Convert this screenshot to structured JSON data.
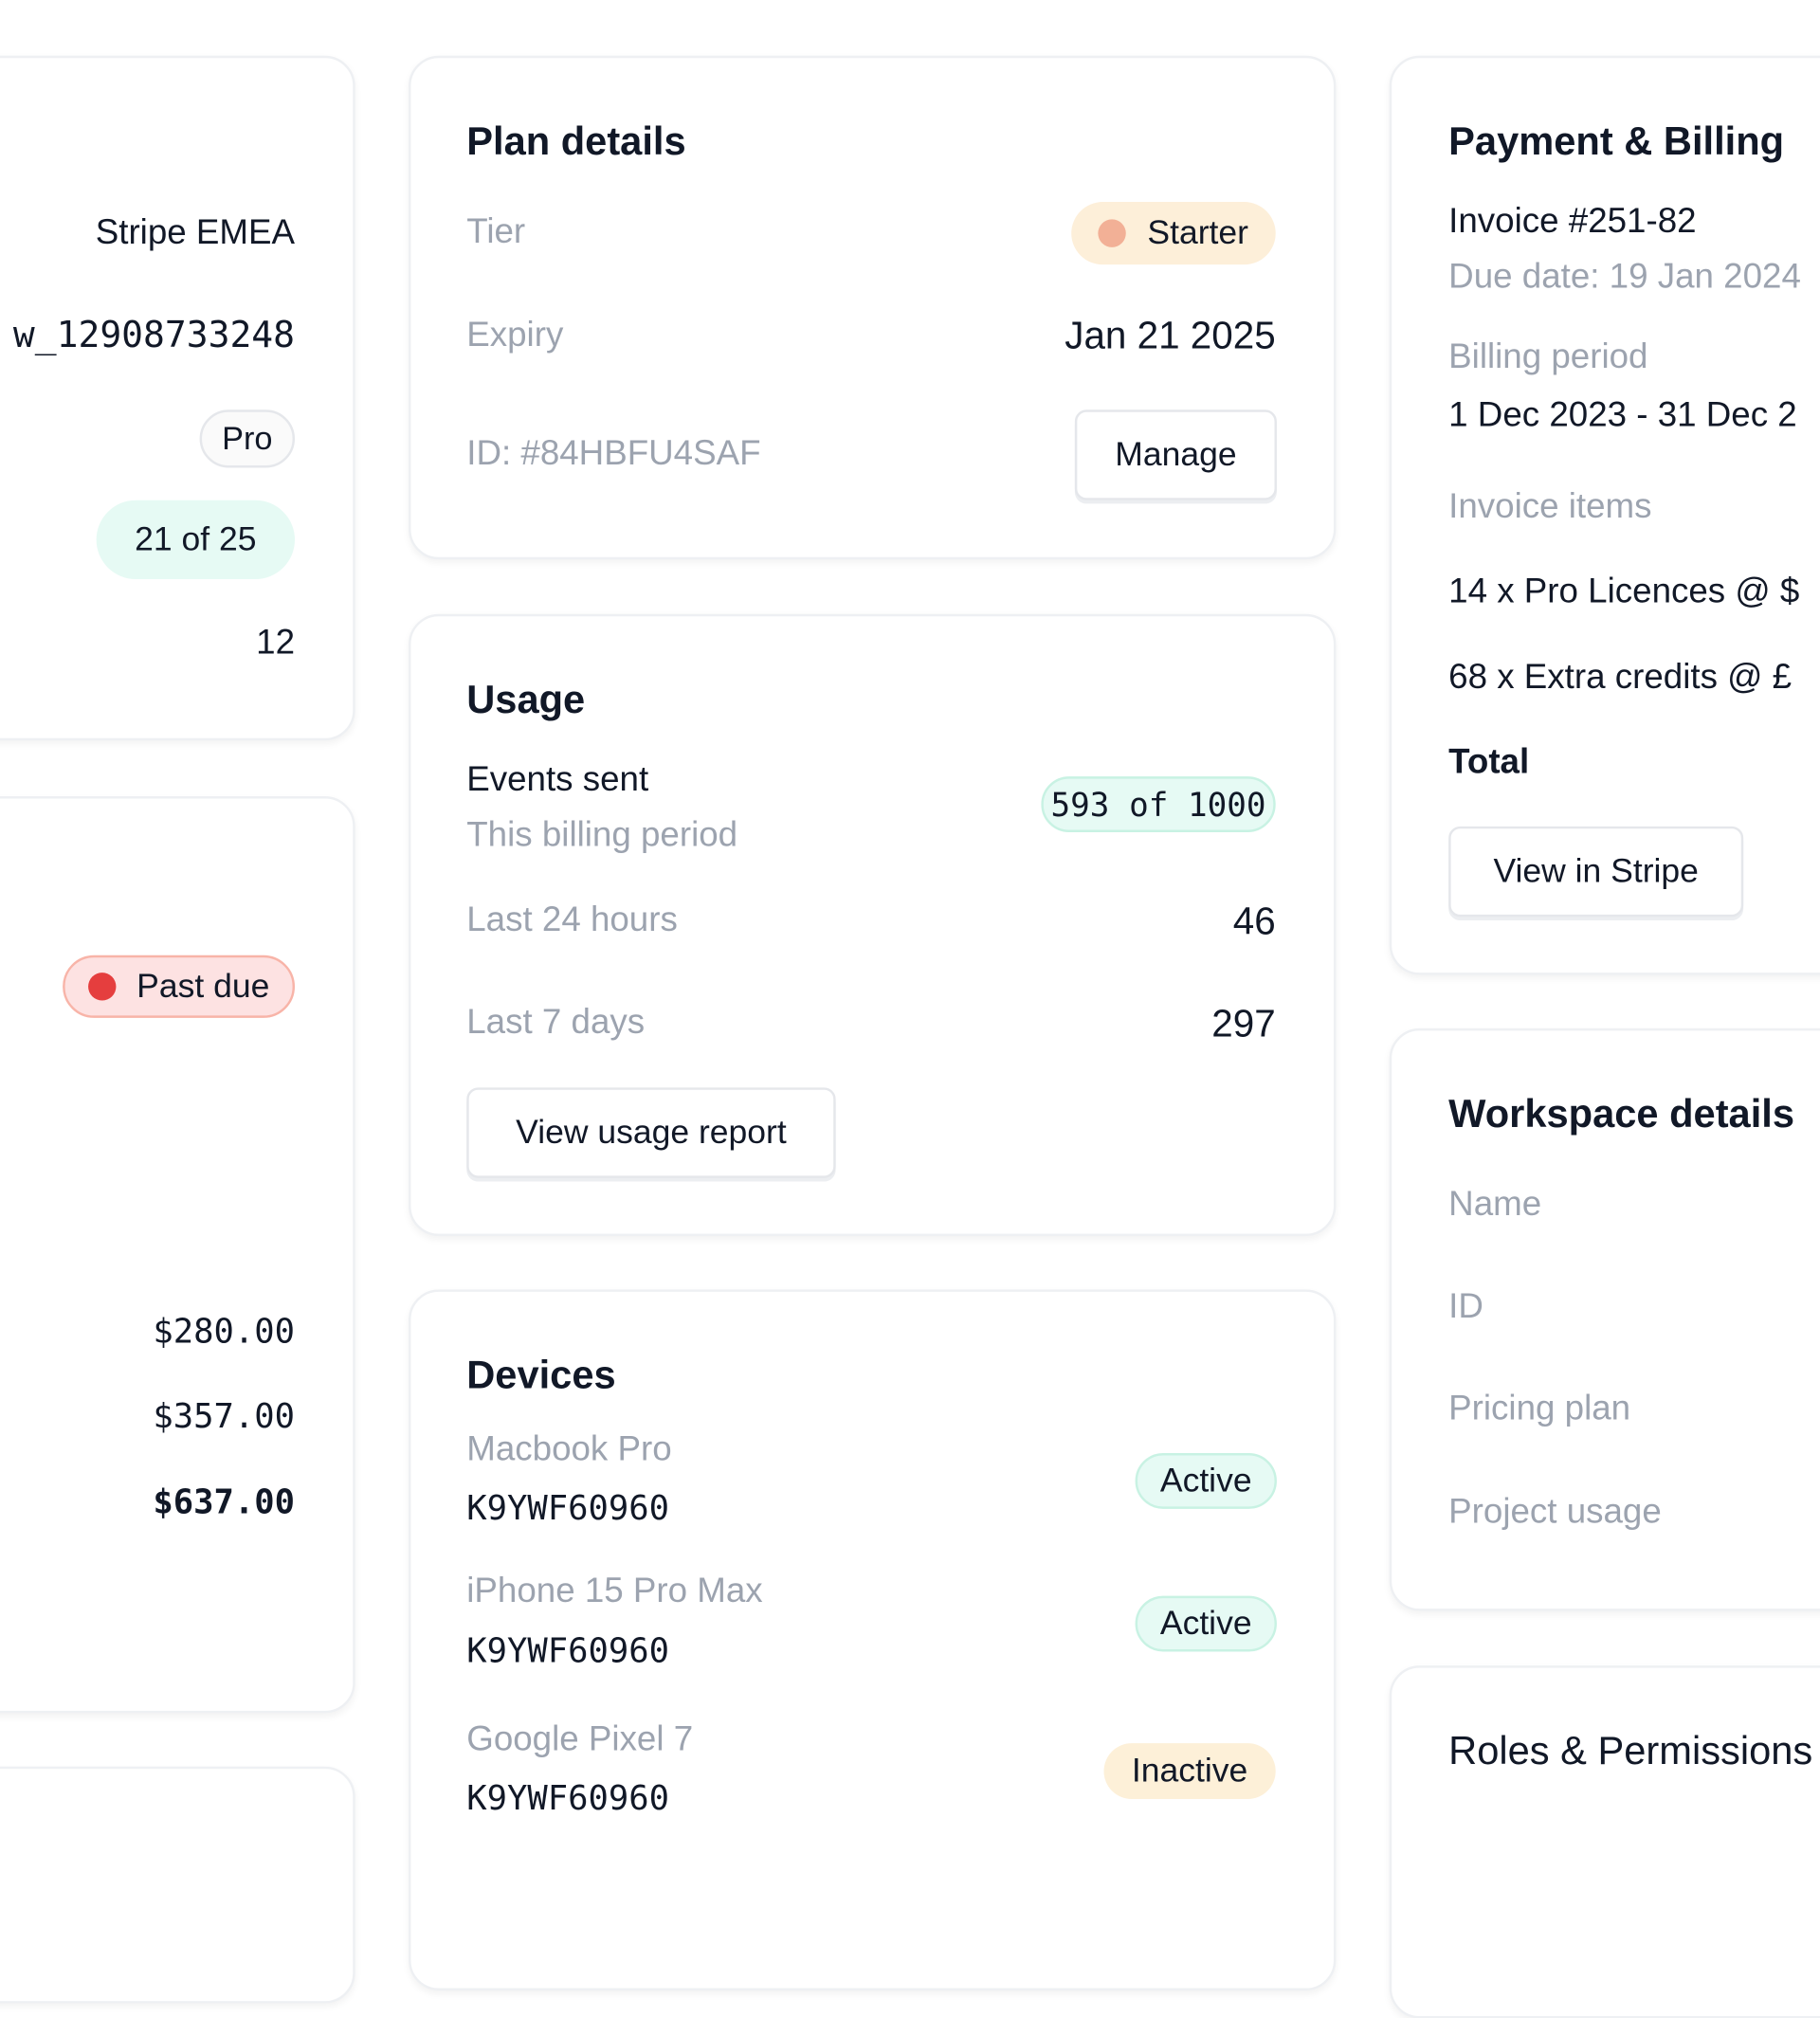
{
  "left_column": {
    "card1": {
      "provider": "Stripe EMEA",
      "account_id": "w_12908733248",
      "plan_badge": "Pro",
      "seats_badge": "21 of 25",
      "count": "12"
    },
    "card2": {
      "status_badge": "Past due",
      "amounts": [
        "$280.00",
        "$357.00",
        "$637.00"
      ]
    }
  },
  "plan_details": {
    "title": "Plan details",
    "tier_label": "Tier",
    "tier_value": "Starter",
    "expiry_label": "Expiry",
    "expiry_value": "Jan 21 2025",
    "id_label": "ID: #84HBFU4SAF",
    "manage_button": "Manage"
  },
  "usage": {
    "title": "Usage",
    "events_label": "Events sent",
    "events_sub": "This billing period",
    "events_badge": "593 of 1000",
    "last24_label": "Last 24 hours",
    "last24_value": "46",
    "last7_label": "Last 7 days",
    "last7_value": "297",
    "report_button": "View usage report"
  },
  "devices": {
    "title": "Devices",
    "items": [
      {
        "name": "Macbook Pro",
        "serial": "K9YWF60960",
        "status": "Active"
      },
      {
        "name": "iPhone 15 Pro Max",
        "serial": "K9YWF60960",
        "status": "Active"
      },
      {
        "name": "Google Pixel 7",
        "serial": "K9YWF60960",
        "status": "Inactive"
      }
    ]
  },
  "payment": {
    "title": "Payment & Billing",
    "invoice": "Invoice #251-82",
    "due_date": "Due date: 19 Jan 2024",
    "billing_period_label": "Billing period",
    "billing_period_value": "1 Dec 2023 - 31 Dec 2",
    "invoice_items_label": "Invoice items",
    "items": [
      "14 x Pro Licences @ $",
      "68 x Extra credits @ £"
    ],
    "total_label": "Total",
    "stripe_button": "View in Stripe"
  },
  "workspace": {
    "title": "Workspace details",
    "fields": [
      "Name",
      "ID",
      "Pricing plan",
      "Project usage"
    ]
  },
  "roles": {
    "title": "Roles & Permissions"
  },
  "colors": {
    "starter_bg": "#fdefd9",
    "starter_dot": "#f2b096",
    "active_bg": "#e6faf4",
    "pastdue_bg": "#fde2e2",
    "pastdue_dot": "#e53e3e",
    "inactive_bg": "#fdf0d8"
  }
}
